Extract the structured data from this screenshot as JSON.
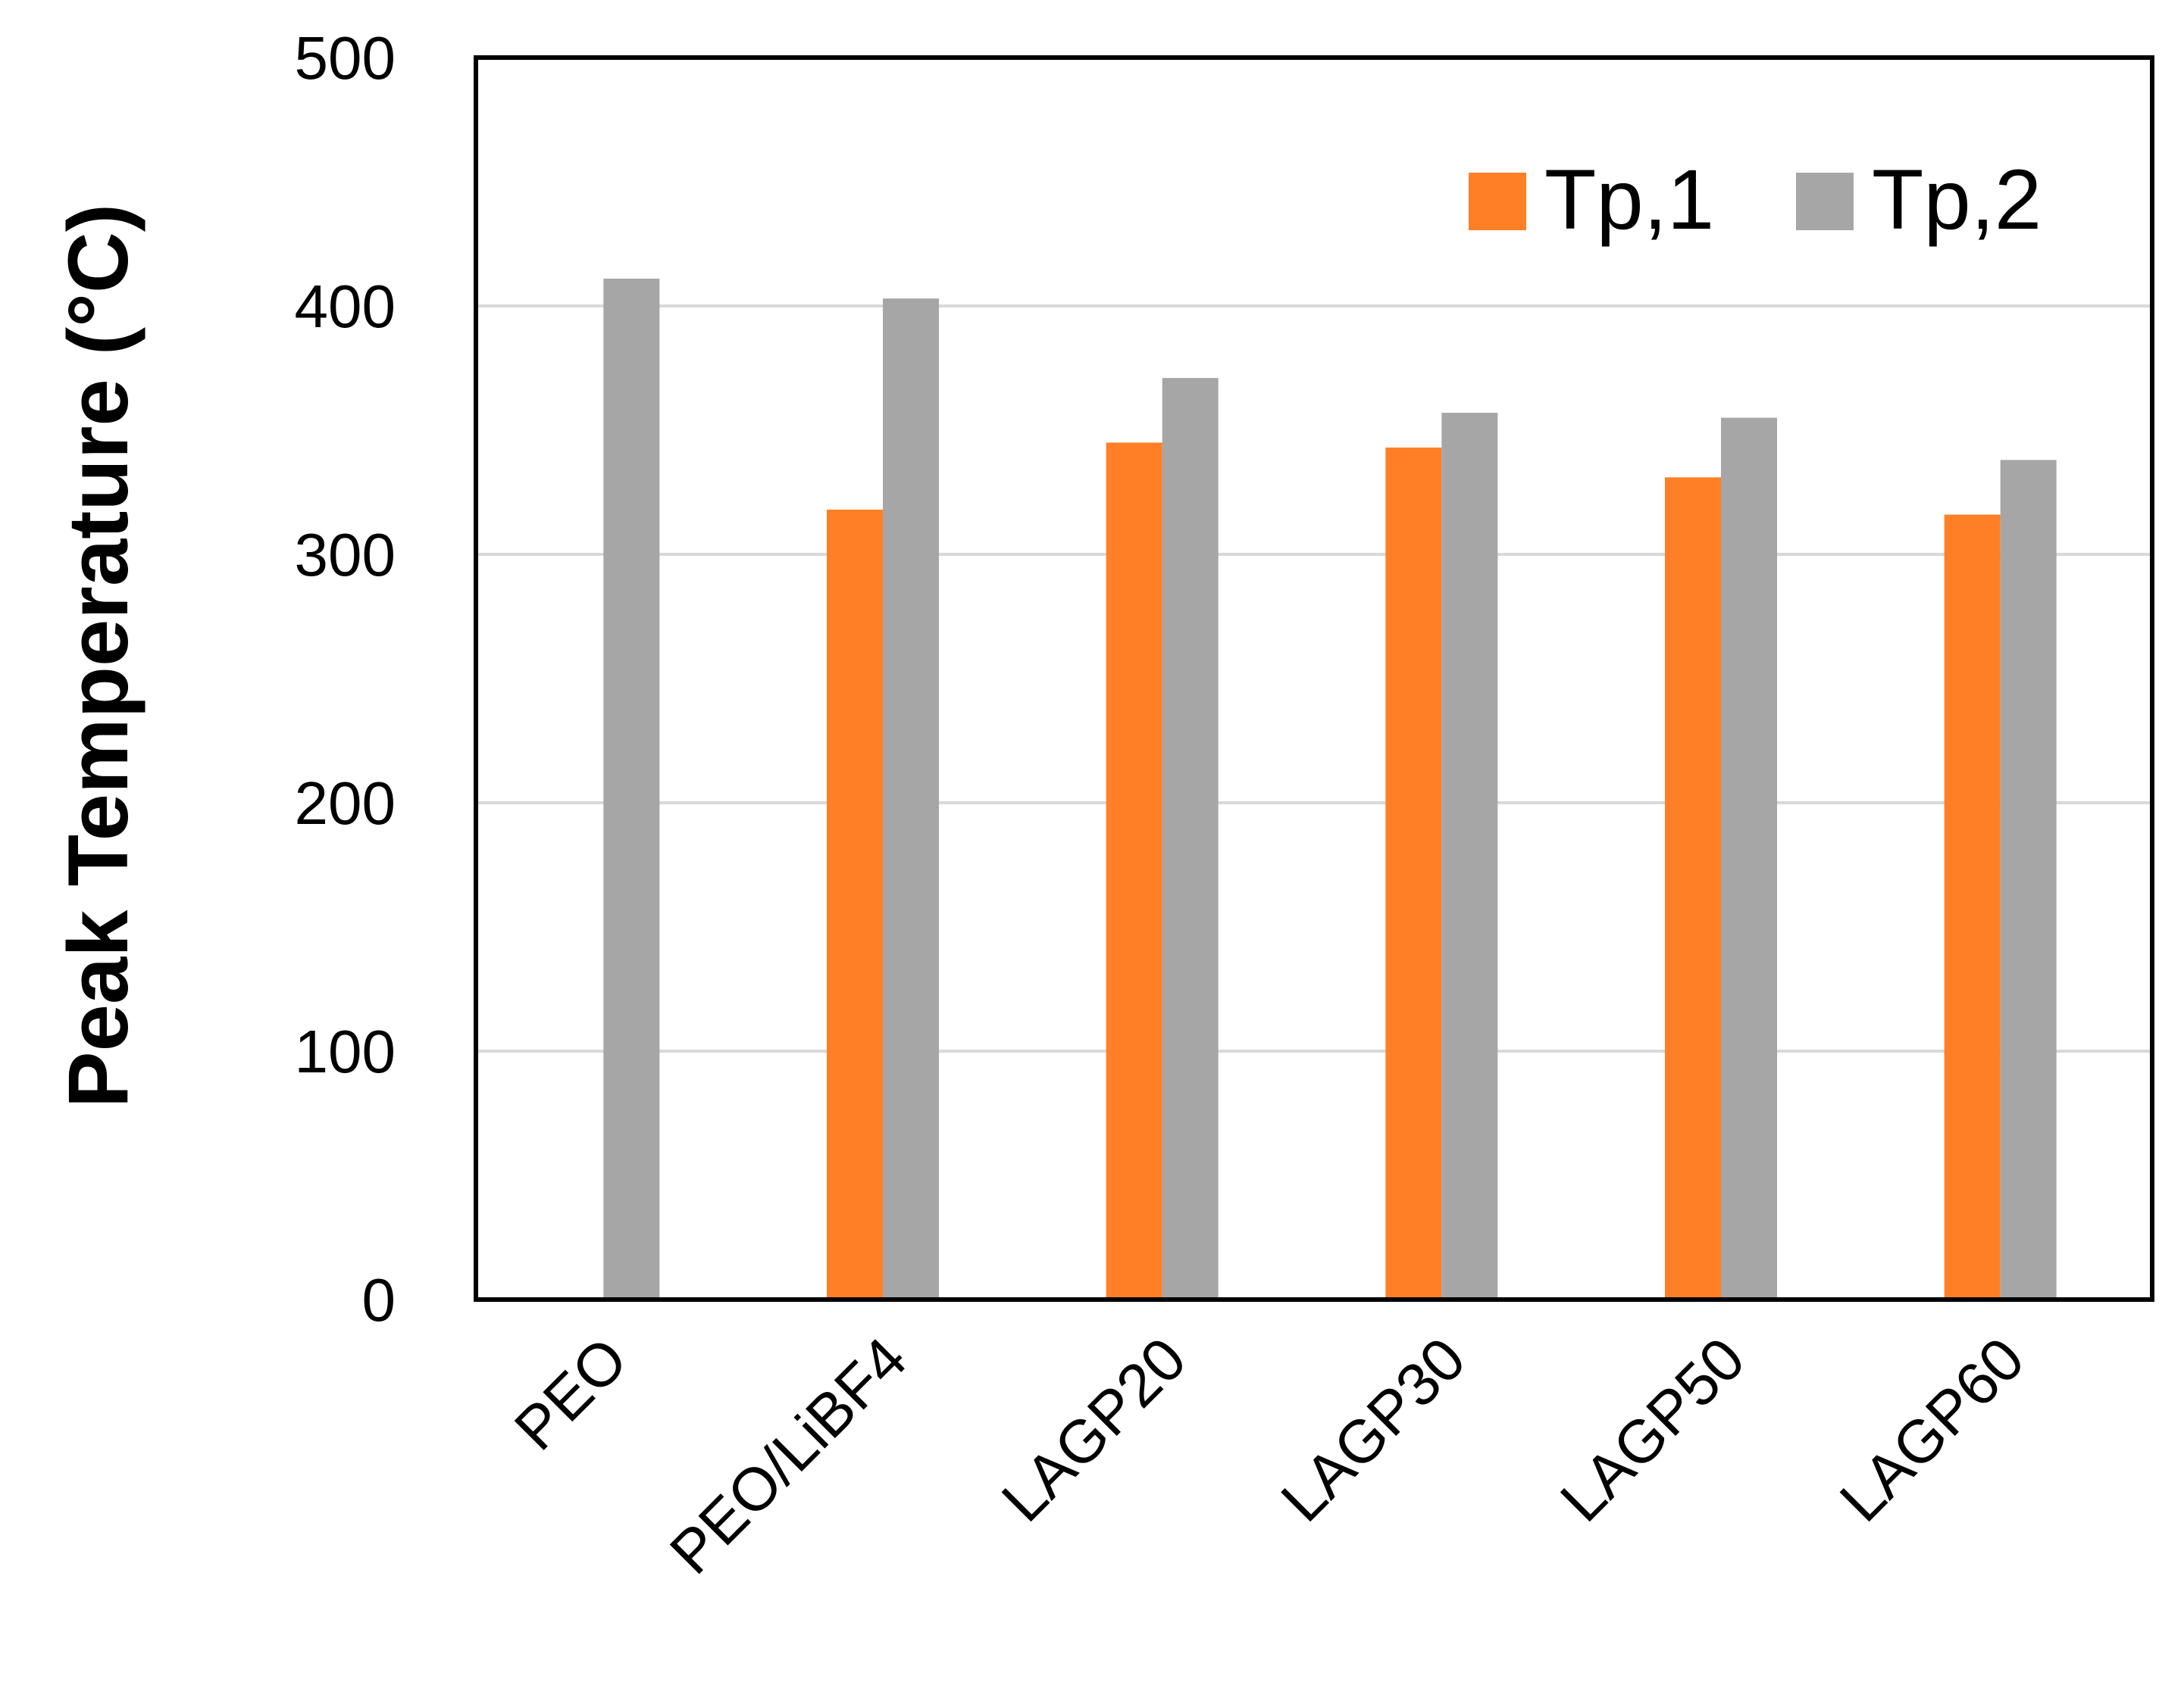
{
  "chart_data": {
    "type": "bar",
    "categories": [
      "PEO",
      "PEO/LiBF4",
      "LAGP20",
      "LAGP30",
      "LAGP50",
      "LAGP60"
    ],
    "series": [
      {
        "name": "Tp,1",
        "color": "#FF7F27",
        "values": [
          null,
          318,
          345,
          343,
          331,
          316
        ]
      },
      {
        "name": "Tp,2",
        "color": "#A6A6A6",
        "values": [
          411,
          403,
          371,
          357,
          355,
          338
        ]
      }
    ],
    "ylabel": "Peak Temperature (°C)",
    "xlabel": "",
    "ylim": [
      0,
      500
    ],
    "yticks": [
      0,
      100,
      200,
      300,
      400,
      500
    ],
    "grid": true,
    "legend_position": "top-right"
  }
}
